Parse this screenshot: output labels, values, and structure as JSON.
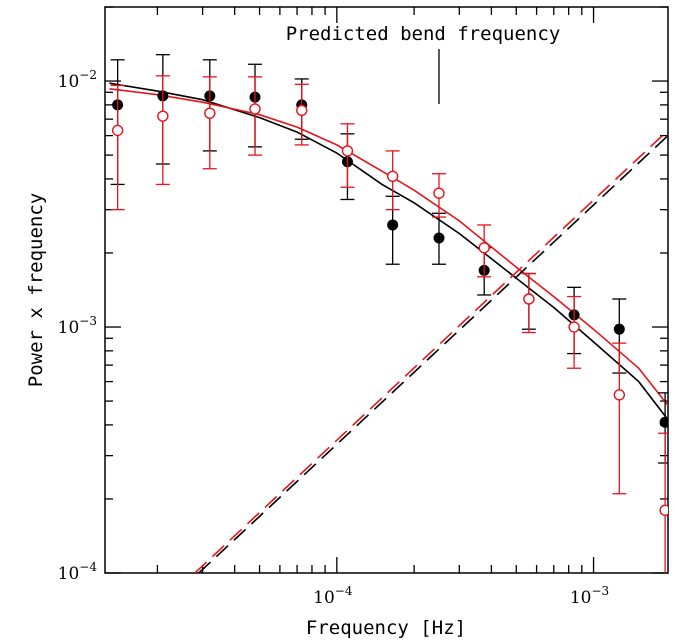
{
  "chart_data": {
    "type": "scatter",
    "xlabel": "Frequency [Hz]",
    "ylabel": "Power x frequency",
    "xscale": "log",
    "yscale": "log",
    "xlim": [
      1.25e-05,
      0.00195
    ],
    "ylim": [
      0.0001,
      0.02
    ],
    "x_ticks": [
      {
        "value": 0.0001,
        "base": "10",
        "exp": "−4"
      },
      {
        "value": 0.001,
        "base": "10",
        "exp": "−3"
      }
    ],
    "y_ticks": [
      {
        "value": 0.0001,
        "base": "10",
        "exp": "−4"
      },
      {
        "value": 0.001,
        "base": "10",
        "exp": "−3"
      },
      {
        "value": 0.01,
        "base": "10",
        "exp": "−2"
      }
    ],
    "annotation": {
      "text": "Predicted  bend frequency",
      "x": 0.00025
    },
    "series": [
      {
        "marker": "filled-circle",
        "color": "#000000",
        "points": [
          {
            "x": 1.4e-05,
            "y": 0.008,
            "ylo": 0.0038,
            "yhi": 0.0122
          },
          {
            "x": 2.1e-05,
            "y": 0.0087,
            "ylo": 0.0046,
            "yhi": 0.0128
          },
          {
            "x": 3.2e-05,
            "y": 0.0087,
            "ylo": 0.0052,
            "yhi": 0.0122
          },
          {
            "x": 4.8e-05,
            "y": 0.0086,
            "ylo": 0.0054,
            "yhi": 0.0117
          },
          {
            "x": 7.3e-05,
            "y": 0.008,
            "ylo": 0.0058,
            "yhi": 0.0102
          },
          {
            "x": 0.00011,
            "y": 0.0047,
            "ylo": 0.0033,
            "yhi": 0.0061
          },
          {
            "x": 0.000165,
            "y": 0.0026,
            "ylo": 0.0018,
            "yhi": 0.0034
          },
          {
            "x": 0.00025,
            "y": 0.0023,
            "ylo": 0.0018,
            "yhi": 0.0029
          },
          {
            "x": 0.000375,
            "y": 0.0017,
            "ylo": 0.00135,
            "yhi": 0.0021
          },
          {
            "x": 0.00056,
            "y": 0.0013,
            "ylo": 0.00098,
            "yhi": 0.00165
          },
          {
            "x": 0.00084,
            "y": 0.00112,
            "ylo": 0.00078,
            "yhi": 0.00145
          },
          {
            "x": 0.00126,
            "y": 0.00098,
            "ylo": 0.00065,
            "yhi": 0.0013
          },
          {
            "x": 0.0019,
            "y": 0.00041,
            "ylo": 0.00028,
            "yhi": 0.00054
          }
        ]
      },
      {
        "marker": "open-circle",
        "color": "#e8141b",
        "points": [
          {
            "x": 1.4e-05,
            "y": 0.0063,
            "ylo": 0.003,
            "yhi": 0.0096
          },
          {
            "x": 2.1e-05,
            "y": 0.0072,
            "ylo": 0.0038,
            "yhi": 0.0105
          },
          {
            "x": 3.2e-05,
            "y": 0.0074,
            "ylo": 0.0044,
            "yhi": 0.0104
          },
          {
            "x": 4.8e-05,
            "y": 0.0077,
            "ylo": 0.005,
            "yhi": 0.0104
          },
          {
            "x": 7.3e-05,
            "y": 0.0076,
            "ylo": 0.0055,
            "yhi": 0.0097
          },
          {
            "x": 0.00011,
            "y": 0.0052,
            "ylo": 0.0037,
            "yhi": 0.0067
          },
          {
            "x": 0.000165,
            "y": 0.0041,
            "ylo": 0.003,
            "yhi": 0.0052
          },
          {
            "x": 0.00025,
            "y": 0.0035,
            "ylo": 0.0028,
            "yhi": 0.0042
          },
          {
            "x": 0.000375,
            "y": 0.0021,
            "ylo": 0.0016,
            "yhi": 0.0026
          },
          {
            "x": 0.00056,
            "y": 0.0013,
            "ylo": 0.00095,
            "yhi": 0.00165
          },
          {
            "x": 0.00084,
            "y": 0.001,
            "ylo": 0.00068,
            "yhi": 0.00133
          },
          {
            "x": 0.00126,
            "y": 0.00053,
            "ylo": 0.00021,
            "yhi": 0.00086
          },
          {
            "x": 0.0019,
            "y": 0.00018,
            "ylo": 8e-05,
            "yhi": 0.00037
          }
        ]
      }
    ],
    "model_curves": [
      {
        "color": "#000000",
        "style": "solid",
        "points": [
          [
            1.3e-05,
            0.0098
          ],
          [
            2e-05,
            0.0091
          ],
          [
            3e-05,
            0.0084
          ],
          [
            5e-05,
            0.0071
          ],
          [
            7e-05,
            0.0062
          ],
          [
            0.0001,
            0.0051
          ],
          [
            0.00015,
            0.0038
          ],
          [
            0.0002,
            0.0032
          ],
          [
            0.0003,
            0.0024
          ],
          [
            0.0005,
            0.00158
          ],
          [
            0.0007,
            0.0012
          ],
          [
            0.001,
            0.00087
          ],
          [
            0.0015,
            0.0006
          ],
          [
            0.00195,
            0.00042
          ]
        ]
      },
      {
        "color": "#e8141b",
        "style": "solid",
        "points": [
          [
            1.3e-05,
            0.0093
          ],
          [
            2e-05,
            0.0088
          ],
          [
            3e-05,
            0.0082
          ],
          [
            5e-05,
            0.0073
          ],
          [
            7e-05,
            0.0065
          ],
          [
            0.0001,
            0.0055
          ],
          [
            0.00015,
            0.0043
          ],
          [
            0.0002,
            0.0036
          ],
          [
            0.0003,
            0.0027
          ],
          [
            0.0005,
            0.00175
          ],
          [
            0.0007,
            0.00133
          ],
          [
            0.001,
            0.00098
          ],
          [
            0.0015,
            0.00068
          ],
          [
            0.00195,
            0.00048
          ]
        ]
      },
      {
        "color": "#000000",
        "style": "dashed",
        "points": [
          [
            2.9e-05,
            0.0001
          ],
          [
            0.00195,
            0.006
          ]
        ]
      },
      {
        "color": "#e8141b",
        "style": "dashed",
        "points": [
          [
            2.8e-05,
            0.0001
          ],
          [
            0.00195,
            0.0063
          ]
        ]
      }
    ]
  }
}
